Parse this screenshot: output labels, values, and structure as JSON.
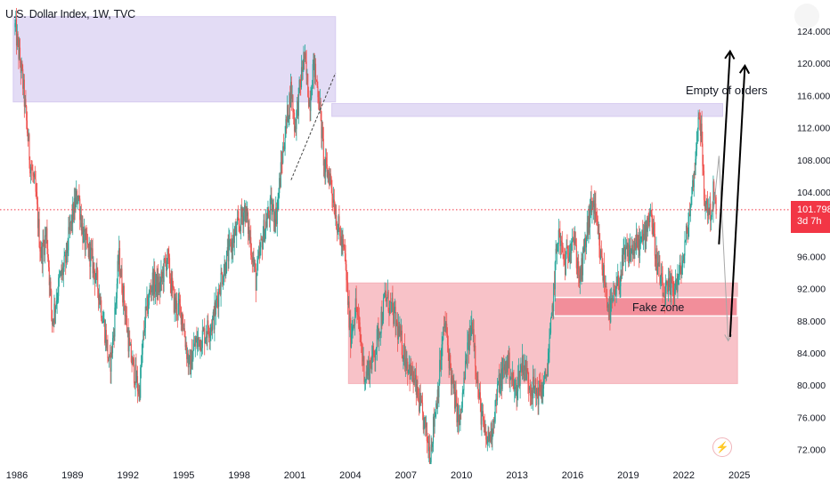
{
  "header": {
    "title": "U.S. Dollar Index, 1W, TVC"
  },
  "price_tag": {
    "price": "101.798",
    "countdown": "3d 7h",
    "color": "#f23645"
  },
  "annotations": {
    "empty_orders": "Empty of orders",
    "fake_zone": "Fake zone"
  },
  "icons": {
    "settings": "settings-icon",
    "lightning": "lightning-icon"
  },
  "colors": {
    "up": "#26a69a",
    "down": "#ef5350",
    "supply_zone": "#e3dcf5",
    "demand_zone": "#f7b8bf",
    "fake_zone": "#f28e9a",
    "arrows": "#000000"
  },
  "chart_data": {
    "type": "candlestick",
    "title": "U.S. Dollar Index, 1W, TVC",
    "interval": "1W",
    "last_price": 101.798,
    "y_ticks": [
      72,
      76,
      80,
      84,
      88,
      92,
      96,
      100,
      104,
      108,
      112,
      116,
      120,
      124
    ],
    "y_tick_labels": [
      "72.000",
      "76.000",
      "80.000",
      "84.000",
      "88.000",
      "92.000",
      "96.000",
      "100.000",
      "104.000",
      "108.000",
      "112.000",
      "116.000",
      "120.000",
      "124.000"
    ],
    "x_ticks": [
      1986,
      1989,
      1992,
      1995,
      1998,
      2001,
      2004,
      2007,
      2010,
      2013,
      2016,
      2019,
      2022,
      2025
    ],
    "price_path": [
      [
        1985.9,
        124.5
      ],
      [
        1986.3,
        118
      ],
      [
        1986.7,
        108
      ],
      [
        1987.0,
        104
      ],
      [
        1987.3,
        96
      ],
      [
        1987.6,
        99
      ],
      [
        1987.9,
        88
      ],
      [
        1988.3,
        93
      ],
      [
        1988.6,
        95
      ],
      [
        1988.9,
        100
      ],
      [
        1989.3,
        104
      ],
      [
        1989.6,
        98
      ],
      [
        1990.0,
        96
      ],
      [
        1990.4,
        92
      ],
      [
        1990.8,
        86
      ],
      [
        1991.0,
        82
      ],
      [
        1991.2,
        86
      ],
      [
        1991.5,
        96
      ],
      [
        1991.8,
        90
      ],
      [
        1992.1,
        84
      ],
      [
        1992.6,
        79
      ],
      [
        1992.9,
        88
      ],
      [
        1993.3,
        93
      ],
      [
        1993.7,
        92
      ],
      [
        1994.1,
        96
      ],
      [
        1994.5,
        90
      ],
      [
        1994.9,
        89
      ],
      [
        1995.3,
        82
      ],
      [
        1995.6,
        85
      ],
      [
        1996.0,
        86
      ],
      [
        1996.6,
        88
      ],
      [
        1997.0,
        93
      ],
      [
        1997.5,
        97
      ],
      [
        1998.0,
        100
      ],
      [
        1998.3,
        102
      ],
      [
        1998.6,
        98
      ],
      [
        1998.9,
        93
      ],
      [
        1999.3,
        99
      ],
      [
        1999.7,
        102
      ],
      [
        2000.0,
        101
      ],
      [
        2000.4,
        110
      ],
      [
        2000.8,
        117
      ],
      [
        2001.0,
        112
      ],
      [
        2001.5,
        121
      ],
      [
        2001.8,
        115
      ],
      [
        2002.0,
        120
      ],
      [
        2002.3,
        116
      ],
      [
        2002.6,
        107
      ],
      [
        2002.9,
        106
      ],
      [
        2003.3,
        100
      ],
      [
        2003.7,
        96
      ],
      [
        2004.0,
        86
      ],
      [
        2004.3,
        90
      ],
      [
        2004.8,
        81
      ],
      [
        2005.3,
        84
      ],
      [
        2005.9,
        91
      ],
      [
        2006.3,
        89
      ],
      [
        2006.9,
        84
      ],
      [
        2007.5,
        80
      ],
      [
        2008.0,
        75
      ],
      [
        2008.3,
        71.5
      ],
      [
        2008.7,
        79
      ],
      [
        2009.1,
        88
      ],
      [
        2009.5,
        80
      ],
      [
        2009.9,
        75
      ],
      [
        2010.3,
        84
      ],
      [
        2010.6,
        88
      ],
      [
        2010.9,
        79
      ],
      [
        2011.3,
        73
      ],
      [
        2011.6,
        74
      ],
      [
        2012.0,
        80
      ],
      [
        2012.5,
        83
      ],
      [
        2012.9,
        79
      ],
      [
        2013.3,
        83
      ],
      [
        2013.7,
        80
      ],
      [
        2014.1,
        79
      ],
      [
        2014.5,
        80
      ],
      [
        2014.8,
        86
      ],
      [
        2015.2,
        99
      ],
      [
        2015.6,
        95
      ],
      [
        2016.0,
        99
      ],
      [
        2016.4,
        93
      ],
      [
        2016.9,
        101
      ],
      [
        2017.1,
        103
      ],
      [
        2017.5,
        96
      ],
      [
        2018.0,
        89
      ],
      [
        2018.4,
        92
      ],
      [
        2018.8,
        96
      ],
      [
        2019.3,
        97
      ],
      [
        2019.8,
        98
      ],
      [
        2020.2,
        102
      ],
      [
        2020.5,
        96
      ],
      [
        2020.9,
        91
      ],
      [
        2021.3,
        92
      ],
      [
        2021.7,
        93
      ],
      [
        2022.0,
        96
      ],
      [
        2022.4,
        103
      ],
      [
        2022.7,
        110
      ],
      [
        2022.8,
        114.8
      ],
      [
        2022.95,
        111
      ],
      [
        2023.1,
        103
      ],
      [
        2023.3,
        102
      ],
      [
        2023.5,
        101.3
      ],
      [
        2023.6,
        104
      ],
      [
        2023.75,
        101.8
      ]
    ],
    "zones": [
      {
        "name": "supply-zone",
        "x": [
          1985.8,
          2003.2
        ],
        "y": [
          115.2,
          125.8
        ],
        "color": "#e3dcf5"
      },
      {
        "name": "empty-of-orders-zone",
        "x": [
          2003.0,
          2024.1
        ],
        "y": [
          113.4,
          115.0
        ],
        "color": "#e3dcf5"
      },
      {
        "name": "demand-zone",
        "x": [
          2003.9,
          2024.9
        ],
        "y": [
          80.2,
          92.7
        ],
        "color": "#f7b8bf"
      },
      {
        "name": "fake-zone",
        "x": [
          2015.0,
          2024.9
        ],
        "y": [
          88.6,
          90.9
        ],
        "color": "#f28e9a"
      }
    ],
    "projection": [
      [
        2023.6,
        101.5
      ],
      [
        2023.9,
        108.5
      ],
      [
        2024.4,
        85.5
      ]
    ],
    "arrows": [
      {
        "from": [
          2023.9,
          97.5
        ],
        "to": [
          2024.5,
          121.5
        ]
      },
      {
        "from": [
          2024.5,
          86.0
        ],
        "to": [
          2025.3,
          119.7
        ]
      }
    ],
    "trendline": [
      [
        2000.8,
        105.5
      ],
      [
        2003.2,
        118.8
      ]
    ],
    "grid": false,
    "current_price_line": true
  }
}
